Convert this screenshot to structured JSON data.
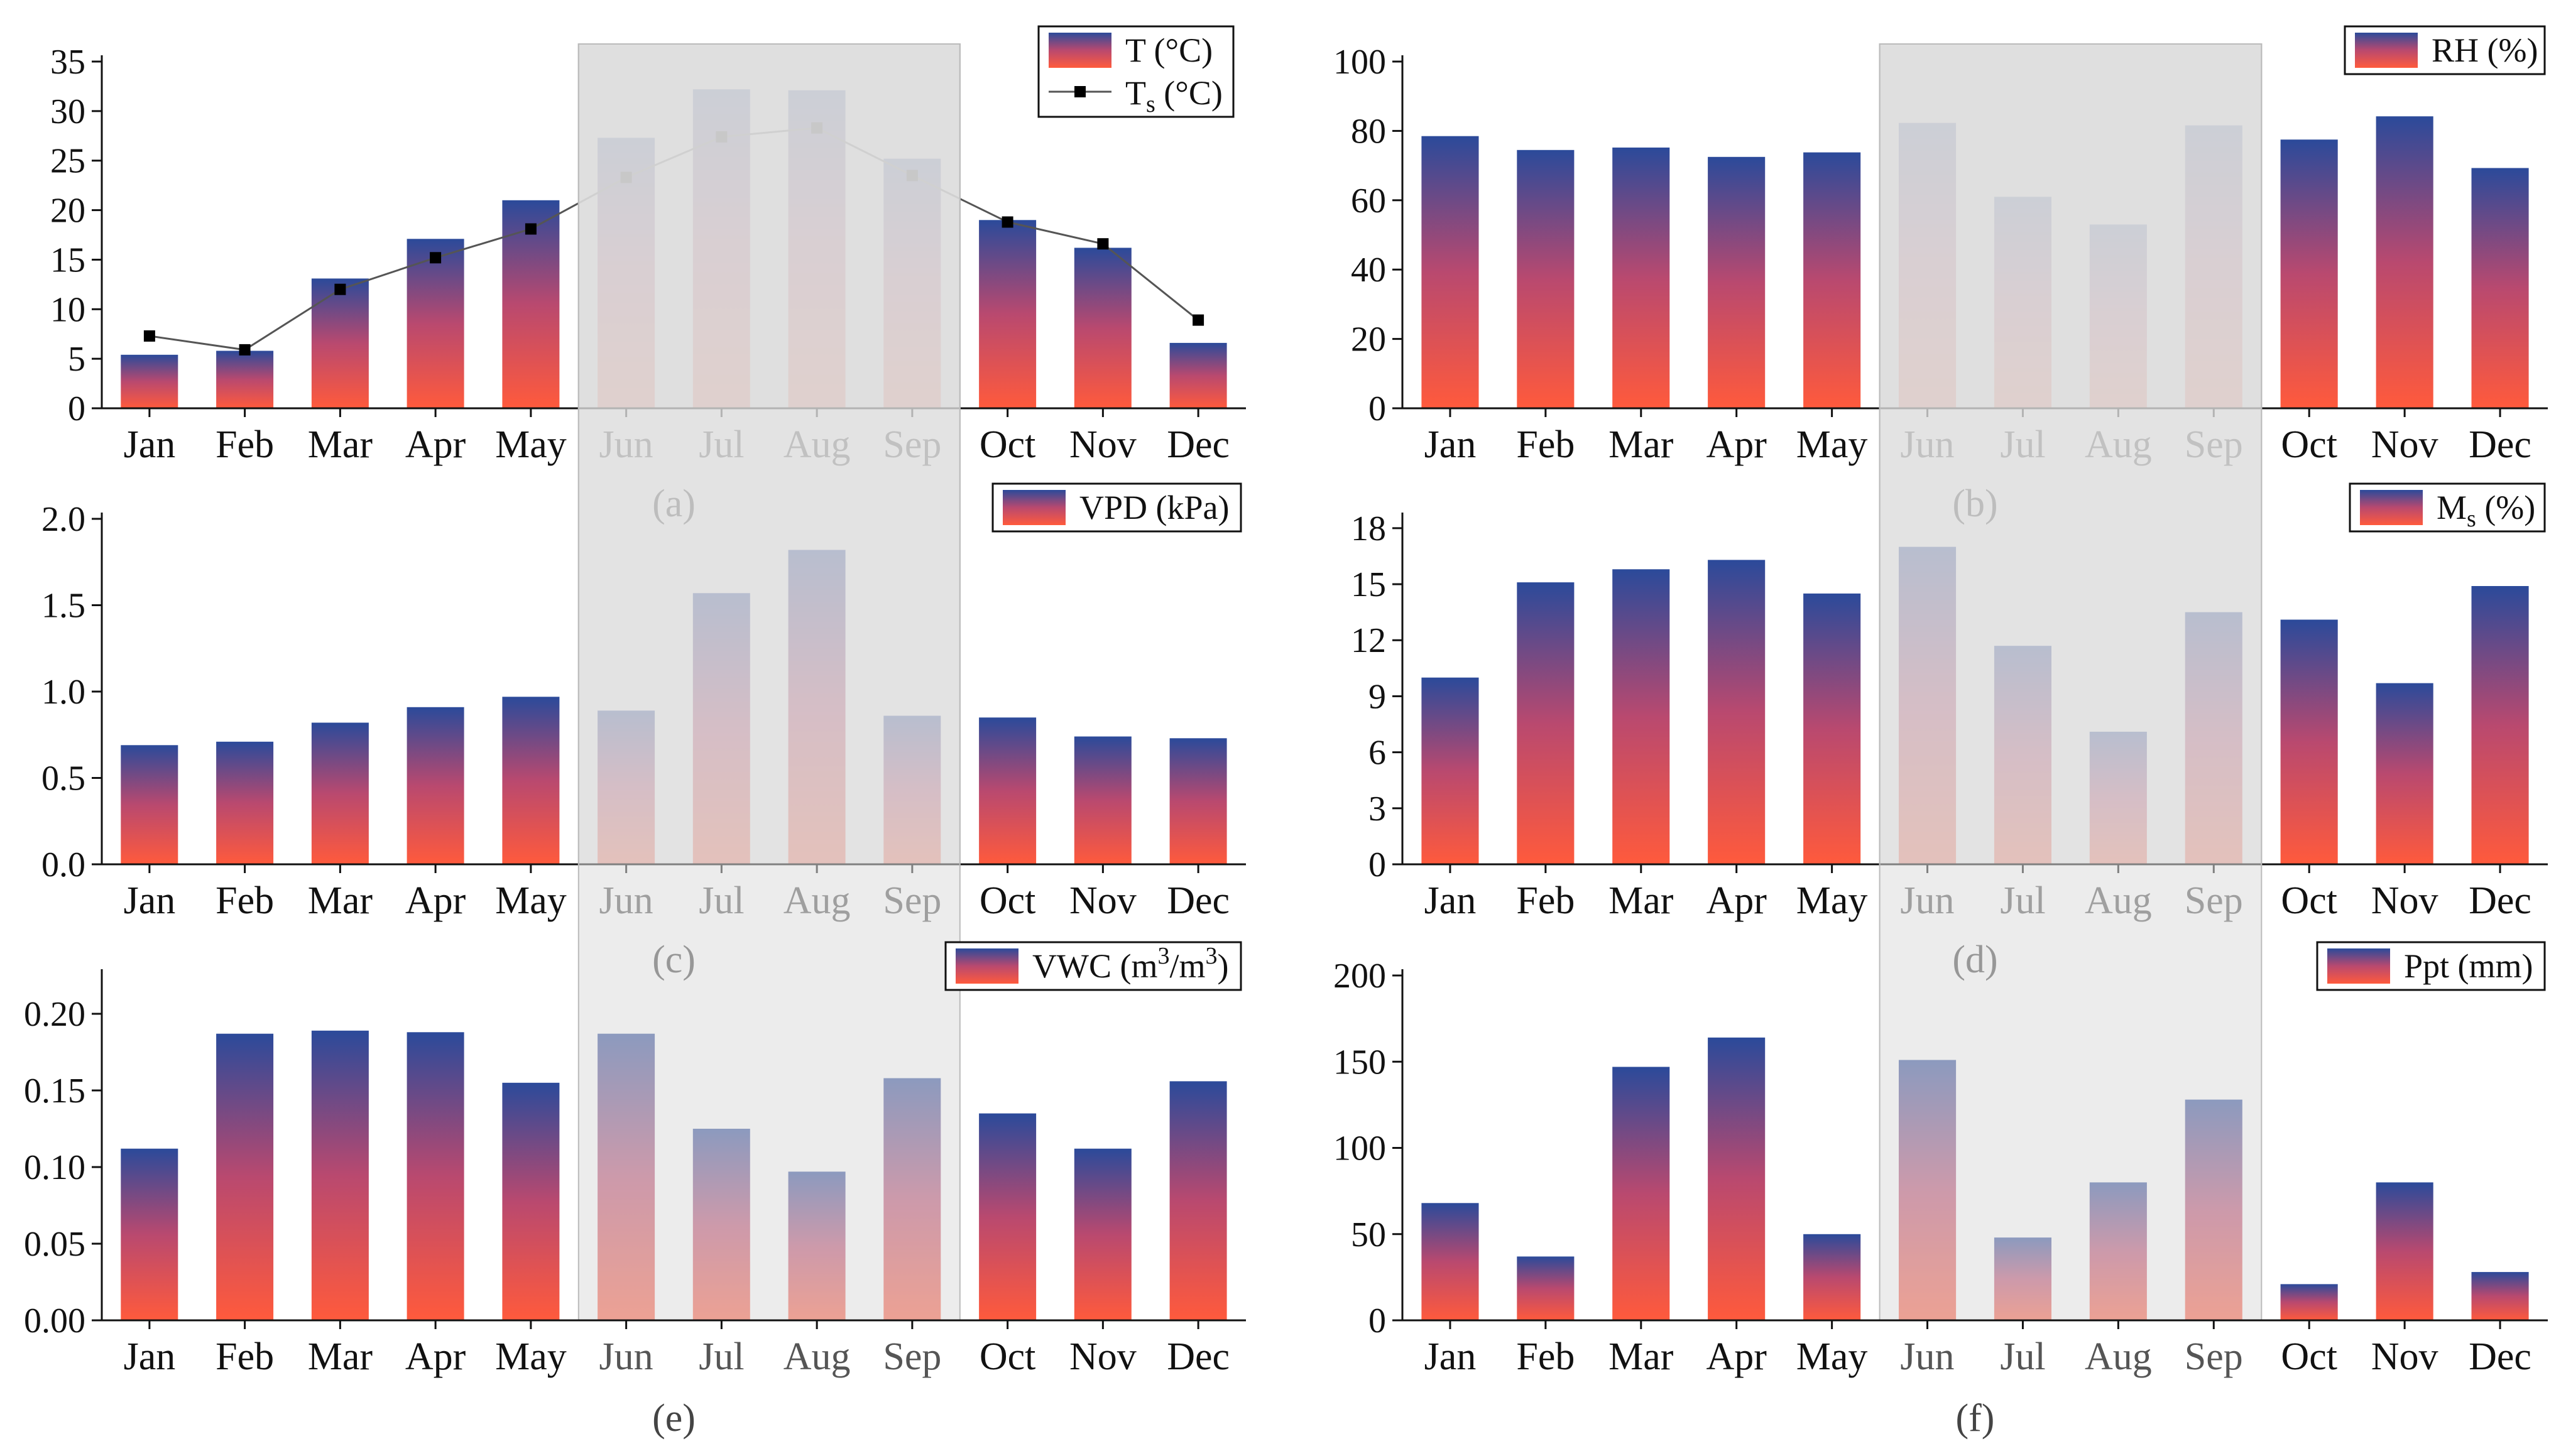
{
  "colors": {
    "bar_top": "#2b4a9a",
    "bar_mid": "#b9496f",
    "bar_bottom": "#ff5a3c",
    "shade": "#dcdcdc",
    "line": "#555555",
    "marker": "#000000"
  },
  "chart_data": [
    {
      "type": "bar",
      "panel": "(a)",
      "categories": [
        "Jan",
        "Feb",
        "Mar",
        "Apr",
        "May",
        "Jun",
        "Jul",
        "Aug",
        "Sep",
        "Oct",
        "Nov",
        "Dec"
      ],
      "series": [
        {
          "name": "T (°C)",
          "label_main": "T",
          "label_sub": "",
          "label_unit": " (°C)",
          "values": [
            5.4,
            5.8,
            13.1,
            17.1,
            21.0,
            27.3,
            32.2,
            32.1,
            25.2,
            19.0,
            16.2,
            6.6
          ]
        },
        {
          "name": "Ts (°C)",
          "label_main": "T",
          "label_sub": "s",
          "label_unit": " (°C)",
          "type": "line",
          "values": [
            7.3,
            5.9,
            12.0,
            15.2,
            18.1,
            23.3,
            27.4,
            28.3,
            23.5,
            18.8,
            16.6,
            8.9
          ]
        }
      ],
      "ylim": [
        0,
        35
      ],
      "yticks": [
        0,
        5,
        10,
        15,
        20,
        25,
        30,
        35
      ],
      "ytick_labels": [
        "0",
        "5",
        "10",
        "15",
        "20",
        "25",
        "30",
        "35"
      ],
      "shaded_months": [
        "Jun",
        "Jul",
        "Aug",
        "Sep"
      ],
      "legend_position": "top-right"
    },
    {
      "type": "bar",
      "panel": "(b)",
      "categories": [
        "Jan",
        "Feb",
        "Mar",
        "Apr",
        "May",
        "Jun",
        "Jul",
        "Aug",
        "Sep",
        "Oct",
        "Nov",
        "Dec"
      ],
      "series": [
        {
          "name": "RH (%)",
          "label_main": "RH",
          "label_sub": "",
          "label_unit": " (%)",
          "values": [
            78.5,
            74.5,
            75.2,
            72.5,
            73.8,
            82.3,
            61.0,
            53.0,
            81.6,
            77.5,
            84.2,
            69.3
          ]
        }
      ],
      "ylim": [
        0,
        100
      ],
      "yticks": [
        0,
        20,
        40,
        60,
        80,
        100
      ],
      "ytick_labels": [
        "0",
        "20",
        "40",
        "60",
        "80",
        "100"
      ],
      "shaded_months": [
        "Jun",
        "Jul",
        "Aug",
        "Sep"
      ],
      "legend_position": "top-right"
    },
    {
      "type": "bar",
      "panel": "(c)",
      "categories": [
        "Jan",
        "Feb",
        "Mar",
        "Apr",
        "May",
        "Jun",
        "Jul",
        "Aug",
        "Sep",
        "Oct",
        "Nov",
        "Dec"
      ],
      "series": [
        {
          "name": "VPD (kPa)",
          "label_main": "VPD",
          "label_sub": "",
          "label_unit": " (kPa)",
          "values": [
            0.69,
            0.71,
            0.82,
            0.91,
            0.97,
            0.89,
            1.57,
            1.82,
            0.86,
            0.85,
            0.74,
            0.73
          ]
        }
      ],
      "ylim": [
        0,
        2.0
      ],
      "yticks": [
        0,
        0.5,
        1.0,
        1.5,
        2.0
      ],
      "ytick_labels": [
        "0.0",
        "0.5",
        "1.0",
        "1.5",
        "2.0"
      ],
      "shaded_months": [
        "Jun",
        "Jul",
        "Aug",
        "Sep"
      ],
      "legend_position": "top-right"
    },
    {
      "type": "bar",
      "panel": "(d)",
      "categories": [
        "Jan",
        "Feb",
        "Mar",
        "Apr",
        "May",
        "Jun",
        "Jul",
        "Aug",
        "Sep",
        "Oct",
        "Nov",
        "Dec"
      ],
      "series": [
        {
          "name": "Ms (%)",
          "label_main": "M",
          "label_sub": "s",
          "label_unit": " (%)",
          "values": [
            10.0,
            15.1,
            15.8,
            16.3,
            14.5,
            17.0,
            11.7,
            7.1,
            13.5,
            13.1,
            9.7,
            14.9
          ]
        }
      ],
      "ylim": [
        0,
        18.5
      ],
      "yticks": [
        0,
        3,
        6,
        9,
        12,
        15,
        18
      ],
      "ytick_labels": [
        "0",
        "3",
        "6",
        "9",
        "12",
        "15",
        "18"
      ],
      "shaded_months": [
        "Jun",
        "Jul",
        "Aug",
        "Sep"
      ],
      "legend_position": "top-right"
    },
    {
      "type": "bar",
      "panel": "(e)",
      "categories": [
        "Jan",
        "Feb",
        "Mar",
        "Apr",
        "May",
        "Jun",
        "Jul",
        "Aug",
        "Sep",
        "Oct",
        "Nov",
        "Dec"
      ],
      "series": [
        {
          "name": "VWC (m3/m3)",
          "label_main": "VWC (m",
          "label_sup": "3",
          "label_mid": "/m",
          "label_sup2": "3",
          "label_unit": ")",
          "values": [
            0.112,
            0.187,
            0.189,
            0.188,
            0.155,
            0.187,
            0.125,
            0.097,
            0.158,
            0.135,
            0.112,
            0.156
          ]
        }
      ],
      "ylim": [
        0,
        0.225
      ],
      "yticks": [
        0,
        0.05,
        0.1,
        0.15,
        0.2
      ],
      "ytick_labels": [
        "0.00",
        "0.05",
        "0.10",
        "0.15",
        "0.20"
      ],
      "shaded_months": [
        "Jun",
        "Jul",
        "Aug",
        "Sep"
      ],
      "legend_position": "top-right"
    },
    {
      "type": "bar",
      "panel": "(f)",
      "categories": [
        "Jan",
        "Feb",
        "Mar",
        "Apr",
        "May",
        "Jun",
        "Jul",
        "Aug",
        "Sep",
        "Oct",
        "Nov",
        "Dec"
      ],
      "series": [
        {
          "name": "Ppt (mm)",
          "label_main": "Ppt",
          "label_sub": "",
          "label_unit": " (mm)",
          "values": [
            68,
            37,
            147,
            164,
            50,
            151,
            48,
            80,
            128,
            21,
            80,
            28
          ]
        }
      ],
      "ylim": [
        0,
        200
      ],
      "yticks": [
        0,
        50,
        100,
        150,
        200
      ],
      "ytick_labels": [
        "0",
        "50",
        "100",
        "150",
        "200"
      ],
      "shaded_months": [
        "Jun",
        "Jul",
        "Aug",
        "Sep"
      ],
      "legend_position": "top-right"
    }
  ]
}
